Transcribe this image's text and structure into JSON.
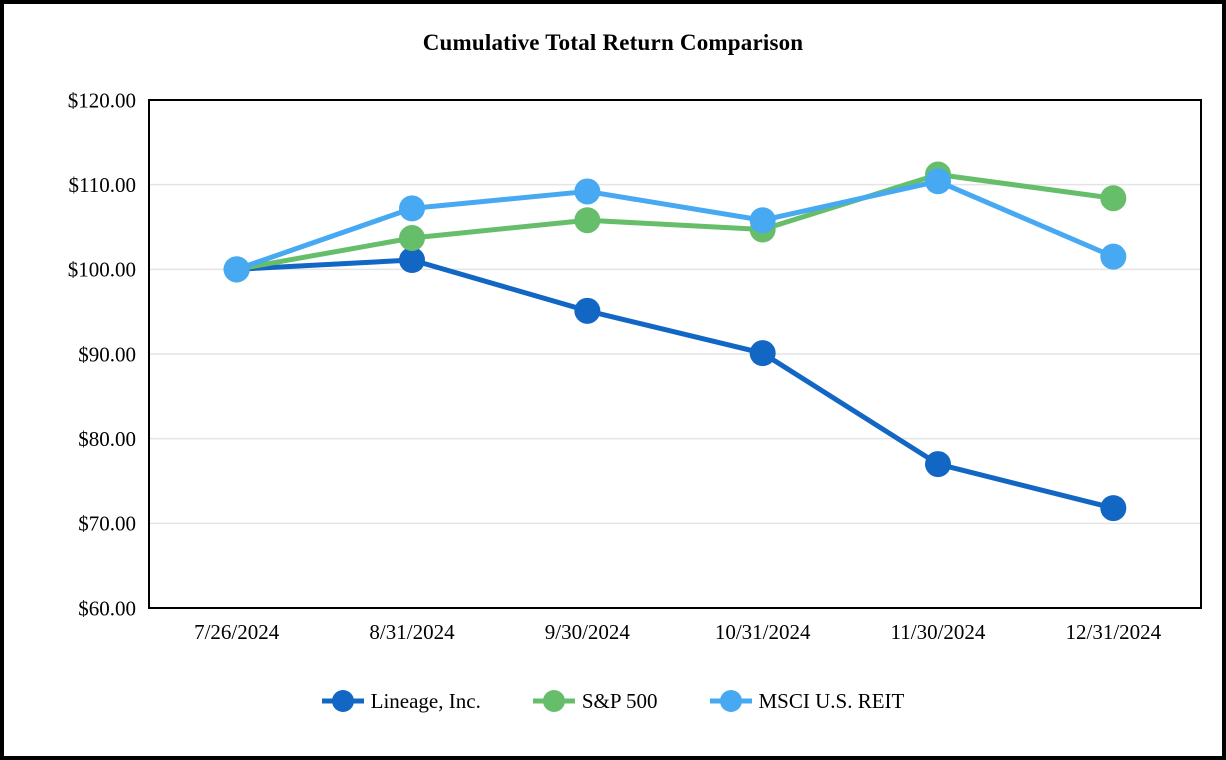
{
  "page": {
    "background_color": "#ffffff",
    "outer_border_color": "#000000"
  },
  "chart_data": {
    "type": "line",
    "title": "Cumulative Total Return Comparison",
    "categories": [
      "7/26/2024",
      "8/31/2024",
      "9/30/2024",
      "10/31/2024",
      "11/30/2024",
      "12/31/2024"
    ],
    "series": [
      {
        "name": "Lineage, Inc.",
        "color": "#1266C4",
        "values": [
          100.0,
          101.1,
          95.1,
          90.1,
          77.0,
          71.8
        ]
      },
      {
        "name": "S&P 500",
        "color": "#66BE6A",
        "values": [
          100.0,
          103.7,
          105.8,
          104.7,
          111.2,
          108.4
        ]
      },
      {
        "name": "MSCI U.S. REIT",
        "color": "#46A9F1",
        "values": [
          100.0,
          107.2,
          109.2,
          105.8,
          110.4,
          101.5
        ]
      }
    ],
    "y_axis": {
      "min": 60,
      "max": 120,
      "step": 10,
      "tick_labels": [
        "$60.00",
        "$70.00",
        "$80.00",
        "$90.00",
        "$100.00",
        "$110.00",
        "$120.00"
      ],
      "format": "currency"
    },
    "xlabel": "",
    "ylabel": "",
    "grid": true,
    "gridline_color": "#E4E4E4",
    "plot_border_color": "#000000",
    "legend_position": "bottom",
    "marker_radius": 13,
    "line_width": 5
  }
}
